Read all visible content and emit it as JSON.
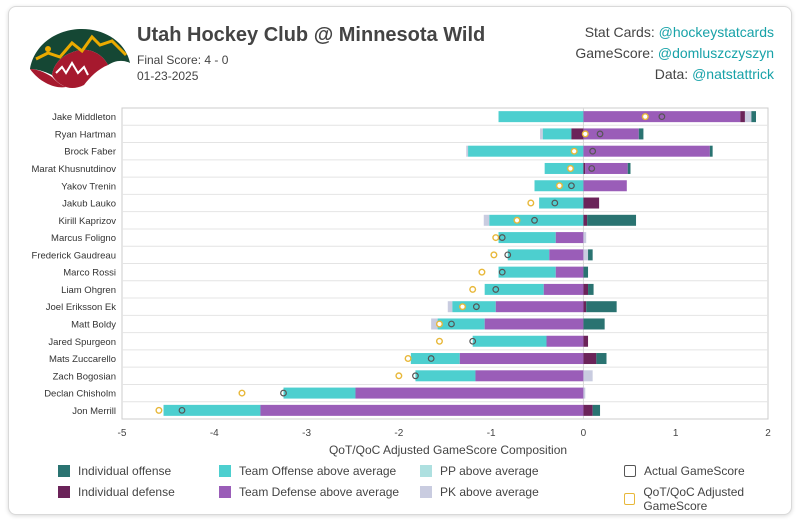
{
  "header": {
    "title": "Utah Hockey Club @ Minnesota Wild",
    "final_score": "Final Score: 4 - 0",
    "date": "01-23-2025"
  },
  "credits": [
    {
      "label": "Stat Cards: ",
      "handle": "@hockeystatcards"
    },
    {
      "label": "GameScore: ",
      "handle": "@domluszczyszyn"
    },
    {
      "label": "Data: ",
      "handle": "@natstattrick"
    }
  ],
  "colors": {
    "ind_off": "#2a7371",
    "ind_def": "#6b2359",
    "team_off": "#4dcfcf",
    "team_def": "#9a5db8",
    "pp": "#aee0e0",
    "pk": "#c9cce0",
    "actual_stroke": "#555555",
    "adj_stroke": "#e8b83a"
  },
  "legend": [
    {
      "key": "ind_off",
      "label": "Individual offense",
      "kind": "fill"
    },
    {
      "key": "team_off",
      "label": "Team Offense above average",
      "kind": "fill"
    },
    {
      "key": "pp",
      "label": "PP above average",
      "kind": "fill"
    },
    {
      "key": "actual",
      "label": "Actual GameScore",
      "kind": "outline-dark"
    },
    {
      "key": "ind_def",
      "label": "Individual defense",
      "kind": "fill"
    },
    {
      "key": "team_def",
      "label": "Team Defense above average",
      "kind": "fill"
    },
    {
      "key": "pk",
      "label": "PK above average",
      "kind": "fill"
    },
    {
      "key": "adj",
      "label": "QoT/QoC Adjusted GameScore",
      "kind": "outline-gold"
    }
  ],
  "chart_data": {
    "type": "bar",
    "orientation": "horizontal-stacked",
    "xlabel": "QoT/QoC Adjusted GameScore Composition",
    "xlim": [
      -5,
      2
    ],
    "xticks": [
      -5,
      -4,
      -3,
      -2,
      -1,
      0,
      1,
      2
    ],
    "grid": "horizontal row separators",
    "players": [
      {
        "name": "Jake Middleton",
        "segments": [
          [
            "team_off",
            -0.92,
            0
          ],
          [
            "team_def",
            0,
            1.7
          ],
          [
            "ind_def",
            1.7,
            1.75
          ],
          [
            "pk",
            1.75,
            1.82
          ],
          [
            "ind_off",
            1.82,
            1.87
          ]
        ],
        "actual": 0.85,
        "adjusted": 0.67
      },
      {
        "name": "Ryan Hartman",
        "segments": [
          [
            "pk",
            -0.47,
            -0.44
          ],
          [
            "team_off",
            -0.44,
            -0.13
          ],
          [
            "ind_def",
            -0.13,
            0
          ],
          [
            "team_def",
            0,
            0.6
          ],
          [
            "ind_off",
            0.6,
            0.65
          ]
        ],
        "actual": 0.18,
        "adjusted": 0.02
      },
      {
        "name": "Brock Faber",
        "segments": [
          [
            "pk",
            -1.27,
            -1.25
          ],
          [
            "team_off",
            -1.25,
            0
          ],
          [
            "team_def",
            0,
            1.37
          ],
          [
            "ind_off",
            1.37,
            1.4
          ]
        ],
        "actual": 0.1,
        "adjusted": -0.1
      },
      {
        "name": "Marat Khusnutdinov",
        "segments": [
          [
            "team_off",
            -0.42,
            0
          ],
          [
            "ind_def",
            0,
            0.02
          ],
          [
            "team_def",
            0.02,
            0.48
          ],
          [
            "ind_off",
            0.48,
            0.51
          ]
        ],
        "actual": 0.09,
        "adjusted": -0.14
      },
      {
        "name": "Yakov Trenin",
        "segments": [
          [
            "team_off",
            -0.53,
            0
          ],
          [
            "team_def",
            0,
            0.47
          ]
        ],
        "actual": -0.13,
        "adjusted": -0.26
      },
      {
        "name": "Jakub Lauko",
        "segments": [
          [
            "team_off",
            -0.48,
            0
          ],
          [
            "ind_def",
            0,
            0.17
          ]
        ],
        "actual": -0.31,
        "adjusted": -0.57
      },
      {
        "name": "Kirill Kaprizov",
        "segments": [
          [
            "pk",
            -1.08,
            -1.02
          ],
          [
            "team_off",
            -1.02,
            0
          ],
          [
            "ind_def",
            0,
            0.04
          ],
          [
            "ind_off",
            0.04,
            0.57
          ]
        ],
        "actual": -0.53,
        "adjusted": -0.72
      },
      {
        "name": "Marcus Foligno",
        "segments": [
          [
            "team_off",
            -0.92,
            -0.3
          ],
          [
            "team_def",
            -0.3,
            0
          ],
          [
            "pk",
            0,
            0.03
          ]
        ],
        "actual": -0.88,
        "adjusted": -0.95
      },
      {
        "name": "Frederick Gaudreau",
        "segments": [
          [
            "team_off",
            -0.82,
            -0.37
          ],
          [
            "team_def",
            -0.37,
            0
          ],
          [
            "pk",
            0,
            0.05
          ],
          [
            "ind_off",
            0.05,
            0.1
          ]
        ],
        "actual": -0.82,
        "adjusted": -0.97
      },
      {
        "name": "Marco Rossi",
        "segments": [
          [
            "team_off",
            -0.92,
            -0.3
          ],
          [
            "team_def",
            -0.3,
            0
          ],
          [
            "ind_off",
            0,
            0.05
          ]
        ],
        "actual": -0.88,
        "adjusted": -1.1
      },
      {
        "name": "Liam Ohgren",
        "segments": [
          [
            "team_off",
            -1.07,
            -0.43
          ],
          [
            "team_def",
            -0.43,
            0
          ],
          [
            "ind_def",
            0,
            0.05
          ],
          [
            "ind_off",
            0.05,
            0.11
          ]
        ],
        "actual": -0.95,
        "adjusted": -1.2
      },
      {
        "name": "Joel Eriksson Ek",
        "segments": [
          [
            "pk",
            -1.47,
            -1.42
          ],
          [
            "team_off",
            -1.42,
            -0.95
          ],
          [
            "team_def",
            -0.95,
            0
          ],
          [
            "ind_def",
            0,
            0.03
          ],
          [
            "ind_off",
            0.03,
            0.36
          ]
        ],
        "actual": -1.16,
        "adjusted": -1.31
      },
      {
        "name": "Matt Boldy",
        "segments": [
          [
            "pk",
            -1.65,
            -1.58
          ],
          [
            "team_off",
            -1.58,
            -1.07
          ],
          [
            "team_def",
            -1.07,
            0
          ],
          [
            "ind_off",
            0,
            0.23
          ]
        ],
        "actual": -1.43,
        "adjusted": -1.56
      },
      {
        "name": "Jared Spurgeon",
        "segments": [
          [
            "team_off",
            -1.2,
            -0.4
          ],
          [
            "team_def",
            -0.4,
            0
          ],
          [
            "ind_def",
            0,
            0.05
          ]
        ],
        "actual": -1.2,
        "adjusted": -1.56
      },
      {
        "name": "Mats Zuccarello",
        "segments": [
          [
            "team_off",
            -1.87,
            -1.34
          ],
          [
            "team_def",
            -1.34,
            0
          ],
          [
            "ind_def",
            0,
            0.14
          ],
          [
            "ind_off",
            0.14,
            0.25
          ]
        ],
        "actual": -1.65,
        "adjusted": -1.9
      },
      {
        "name": "Zach Bogosian",
        "segments": [
          [
            "team_off",
            -1.82,
            -1.17
          ],
          [
            "team_def",
            -1.17,
            0
          ],
          [
            "pk",
            0,
            0.1
          ]
        ],
        "actual": -1.82,
        "adjusted": -2.0
      },
      {
        "name": "Declan Chisholm",
        "segments": [
          [
            "team_off",
            -3.25,
            -2.47
          ],
          [
            "team_def",
            -2.47,
            0
          ],
          [
            "pk",
            0,
            0.02
          ]
        ],
        "actual": -3.25,
        "adjusted": -3.7
      },
      {
        "name": "Jon Merrill",
        "segments": [
          [
            "team_off",
            -4.55,
            -3.5
          ],
          [
            "team_def",
            -3.5,
            0
          ],
          [
            "ind_def",
            0,
            0.1
          ],
          [
            "ind_off",
            0.1,
            0.18
          ]
        ],
        "actual": -4.35,
        "adjusted": -4.6
      }
    ]
  }
}
